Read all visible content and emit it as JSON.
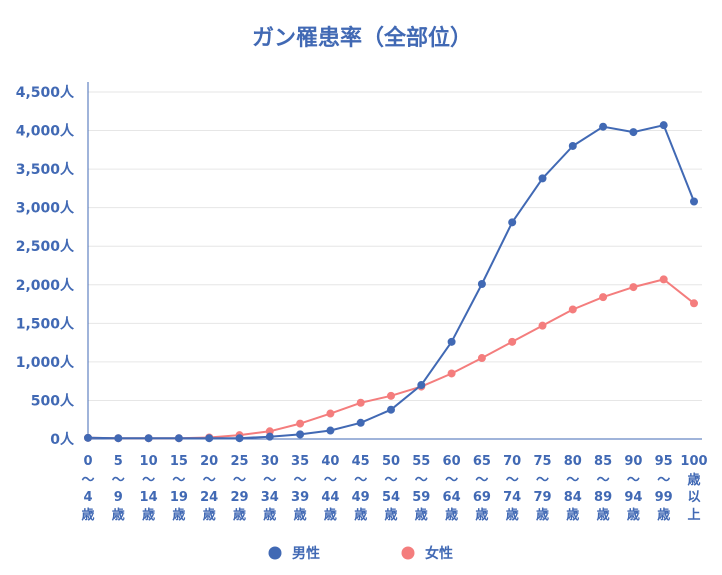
{
  "chart_data": {
    "type": "line",
    "title": "ガン罹患率（全部位）",
    "xlabel": "",
    "ylabel": "",
    "ylim": [
      0,
      4500
    ],
    "ystep": 500,
    "y_tick_labels": [
      "0人",
      "500人",
      "1,000人",
      "1,500人",
      "2,000人",
      "2,500人",
      "3,000人",
      "3,500人",
      "4,000人",
      "4,500人"
    ],
    "grid": "horizontal",
    "legend_position": "bottom",
    "categories": [
      [
        "0",
        "〜",
        "4",
        "歳"
      ],
      [
        "5",
        "〜",
        "9",
        "歳"
      ],
      [
        "10",
        "〜",
        "14",
        "歳"
      ],
      [
        "15",
        "〜",
        "19",
        "歳"
      ],
      [
        "20",
        "〜",
        "24",
        "歳"
      ],
      [
        "25",
        "〜",
        "29",
        "歳"
      ],
      [
        "30",
        "〜",
        "34",
        "歳"
      ],
      [
        "35",
        "〜",
        "39",
        "歳"
      ],
      [
        "40",
        "〜",
        "44",
        "歳"
      ],
      [
        "45",
        "〜",
        "49",
        "歳"
      ],
      [
        "50",
        "〜",
        "54",
        "歳"
      ],
      [
        "55",
        "〜",
        "59",
        "歳"
      ],
      [
        "60",
        "〜",
        "64",
        "歳"
      ],
      [
        "65",
        "〜",
        "69",
        "歳"
      ],
      [
        "70",
        "〜",
        "74",
        "歳"
      ],
      [
        "75",
        "〜",
        "79",
        "歳"
      ],
      [
        "80",
        "〜",
        "84",
        "歳"
      ],
      [
        "85",
        "〜",
        "89",
        "歳"
      ],
      [
        "90",
        "〜",
        "94",
        "歳"
      ],
      [
        "95",
        "〜",
        "99",
        "歳"
      ],
      [
        "100",
        "歳",
        "以",
        "上"
      ]
    ],
    "series": [
      {
        "name": "男性",
        "color": "#4169b4",
        "values": [
          15,
          10,
          10,
          10,
          10,
          10,
          30,
          60,
          110,
          210,
          380,
          700,
          1260,
          2010,
          2810,
          3380,
          3800,
          4050,
          3980,
          4070,
          3080
        ]
      },
      {
        "name": "女性",
        "color": "#f47d7d",
        "values": [
          15,
          10,
          10,
          10,
          20,
          50,
          100,
          200,
          330,
          470,
          560,
          680,
          850,
          1050,
          1260,
          1470,
          1680,
          1840,
          1970,
          2070,
          1760
        ]
      }
    ],
    "colors": {
      "text": "#4169b4",
      "grid": "#e6e6e6",
      "axis": "#4169b4"
    }
  }
}
